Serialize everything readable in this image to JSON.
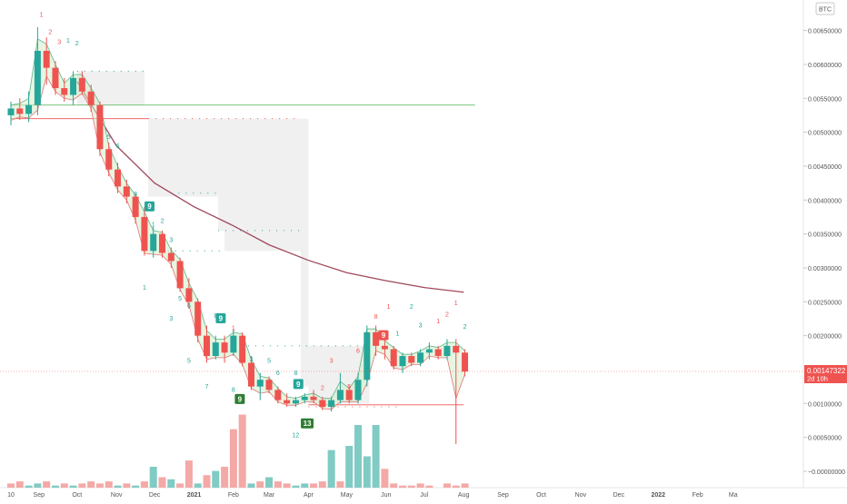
{
  "chart_data": {
    "type": "candlestick",
    "symbol_badge": "BTC",
    "y_ticks": [
      "0.00650000",
      "0.00600000",
      "0.00550000",
      "0.00500000",
      "0.00450000",
      "0.00400000",
      "0.00350000",
      "0.00300000",
      "0.00250000",
      "0.00200000",
      "0.00100000",
      "0.00050000",
      "−0.00000000"
    ],
    "y_tick_values": [
      0.0065,
      0.006,
      0.0055,
      0.005,
      0.0045,
      0.004,
      0.0035,
      0.003,
      0.0025,
      0.002,
      0.001,
      0.0005,
      0
    ],
    "ylim": [
      -9e-05,
      0.007
    ],
    "x_ticks": [
      "10",
      "Sep",
      "Oct",
      "Nov",
      "Dec",
      "2021",
      "Feb",
      "Mar",
      "Apr",
      "May",
      "Jun",
      "Jul",
      "Aug",
      "Sep",
      "Oct",
      "Nov",
      "Dec",
      "2022",
      "Feb",
      "Ma"
    ],
    "x_tick_dates": [
      "2020-08-10",
      "2020-09-01",
      "2020-10-01",
      "2020-11-01",
      "2020-12-01",
      "2021-01-01",
      "2021-02-01",
      "2021-03-01",
      "2021-04-01",
      "2021-05-01",
      "2021-06-01",
      "2021-07-01",
      "2021-08-01",
      "2021-09-01",
      "2021-10-01",
      "2021-11-01",
      "2021-12-01",
      "2022-01-01",
      "2022-02-01",
      "2022-03-01"
    ],
    "last_price": "0.00147322",
    "countdown": "2d 10h",
    "colors": {
      "up": "#26a69a",
      "down": "#ef5350",
      "ma": "#a0485a",
      "support": "#4caf50",
      "resistance": "#ef5350"
    },
    "candles": [
      {
        "date": "2020-08-10",
        "o": 0.00525,
        "h": 0.00545,
        "l": 0.0051,
        "c": 0.00535
      },
      {
        "date": "2020-08-17",
        "o": 0.00535,
        "h": 0.0055,
        "l": 0.00518,
        "c": 0.00527
      },
      {
        "date": "2020-08-24",
        "o": 0.00527,
        "h": 0.0056,
        "l": 0.00515,
        "c": 0.0054
      },
      {
        "date": "2020-08-31",
        "o": 0.0054,
        "h": 0.00655,
        "l": 0.00525,
        "c": 0.0062
      },
      {
        "date": "2020-09-07",
        "o": 0.0062,
        "h": 0.0064,
        "l": 0.0057,
        "c": 0.00595
      },
      {
        "date": "2020-09-14",
        "o": 0.00595,
        "h": 0.00605,
        "l": 0.00555,
        "c": 0.00565
      },
      {
        "date": "2020-09-21",
        "o": 0.00565,
        "h": 0.0058,
        "l": 0.00545,
        "c": 0.00555
      },
      {
        "date": "2020-09-28",
        "o": 0.00555,
        "h": 0.0059,
        "l": 0.0054,
        "c": 0.0058
      },
      {
        "date": "2020-10-05",
        "o": 0.0058,
        "h": 0.0059,
        "l": 0.00555,
        "c": 0.0056
      },
      {
        "date": "2020-10-12",
        "o": 0.0056,
        "h": 0.0057,
        "l": 0.0053,
        "c": 0.0054
      },
      {
        "date": "2020-10-19",
        "o": 0.0054,
        "h": 0.00545,
        "l": 0.00465,
        "c": 0.00475
      },
      {
        "date": "2020-10-26",
        "o": 0.00475,
        "h": 0.00485,
        "l": 0.00435,
        "c": 0.00445
      },
      {
        "date": "2020-11-02",
        "o": 0.00445,
        "h": 0.00455,
        "l": 0.0041,
        "c": 0.0042
      },
      {
        "date": "2020-11-09",
        "o": 0.0042,
        "h": 0.0043,
        "l": 0.00395,
        "c": 0.00405
      },
      {
        "date": "2020-11-16",
        "o": 0.00405,
        "h": 0.0041,
        "l": 0.00365,
        "c": 0.00375
      },
      {
        "date": "2020-11-23",
        "o": 0.00375,
        "h": 0.0039,
        "l": 0.00318,
        "c": 0.00325
      },
      {
        "date": "2020-11-30",
        "o": 0.00325,
        "h": 0.0036,
        "l": 0.00315,
        "c": 0.0035
      },
      {
        "date": "2020-12-07",
        "o": 0.0035,
        "h": 0.00355,
        "l": 0.00315,
        "c": 0.00322
      },
      {
        "date": "2020-12-14",
        "o": 0.00322,
        "h": 0.0033,
        "l": 0.003,
        "c": 0.0031
      },
      {
        "date": "2020-12-21",
        "o": 0.0031,
        "h": 0.00315,
        "l": 0.00265,
        "c": 0.0027
      },
      {
        "date": "2020-12-28",
        "o": 0.0027,
        "h": 0.00285,
        "l": 0.0024,
        "c": 0.0025
      },
      {
        "date": "2021-01-04",
        "o": 0.0025,
        "h": 0.00255,
        "l": 0.0019,
        "c": 0.002
      },
      {
        "date": "2021-01-11",
        "o": 0.002,
        "h": 0.00215,
        "l": 0.0016,
        "c": 0.0017
      },
      {
        "date": "2021-01-18",
        "o": 0.0017,
        "h": 0.002,
        "l": 0.00165,
        "c": 0.0019
      },
      {
        "date": "2021-01-25",
        "o": 0.0019,
        "h": 0.002,
        "l": 0.0016,
        "c": 0.00175
      },
      {
        "date": "2021-02-01",
        "o": 0.00175,
        "h": 0.0021,
        "l": 0.0017,
        "c": 0.002
      },
      {
        "date": "2021-02-08",
        "o": 0.002,
        "h": 0.00205,
        "l": 0.00155,
        "c": 0.0016
      },
      {
        "date": "2021-02-15",
        "o": 0.0016,
        "h": 0.0017,
        "l": 0.0012,
        "c": 0.00125
      },
      {
        "date": "2021-02-22",
        "o": 0.00125,
        "h": 0.00145,
        "l": 0.00105,
        "c": 0.00135
      },
      {
        "date": "2021-03-01",
        "o": 0.00135,
        "h": 0.0014,
        "l": 0.00115,
        "c": 0.0012
      },
      {
        "date": "2021-03-08",
        "o": 0.0012,
        "h": 0.00125,
        "l": 0.001,
        "c": 0.00105
      },
      {
        "date": "2021-03-15",
        "o": 0.00105,
        "h": 0.00115,
        "l": 0.00095,
        "c": 0.001
      },
      {
        "date": "2021-03-22",
        "o": 0.001,
        "h": 0.0011,
        "l": 0.00095,
        "c": 0.00105
      },
      {
        "date": "2021-03-29",
        "o": 0.00105,
        "h": 0.00115,
        "l": 0.001,
        "c": 0.0011
      },
      {
        "date": "2021-04-05",
        "o": 0.0011,
        "h": 0.0012,
        "l": 0.001,
        "c": 0.00105
      },
      {
        "date": "2021-04-12",
        "o": 0.00105,
        "h": 0.0011,
        "l": 0.0009,
        "c": 0.00095
      },
      {
        "date": "2021-04-19",
        "o": 0.00095,
        "h": 0.0011,
        "l": 0.00088,
        "c": 0.00105
      },
      {
        "date": "2021-04-26",
        "o": 0.00105,
        "h": 0.00145,
        "l": 0.001,
        "c": 0.0012
      },
      {
        "date": "2021-05-03",
        "o": 0.0012,
        "h": 0.00125,
        "l": 0.001,
        "c": 0.00105
      },
      {
        "date": "2021-05-10",
        "o": 0.00105,
        "h": 0.00145,
        "l": 0.001,
        "c": 0.00135
      },
      {
        "date": "2021-05-17",
        "o": 0.00135,
        "h": 0.00215,
        "l": 0.00125,
        "c": 0.00205
      },
      {
        "date": "2021-05-24",
        "o": 0.00205,
        "h": 0.00215,
        "l": 0.0017,
        "c": 0.00185
      },
      {
        "date": "2021-05-31",
        "o": 0.00185,
        "h": 0.002,
        "l": 0.00165,
        "c": 0.0018
      },
      {
        "date": "2021-06-07",
        "o": 0.0018,
        "h": 0.00185,
        "l": 0.0015,
        "c": 0.00155
      },
      {
        "date": "2021-06-14",
        "o": 0.00155,
        "h": 0.00175,
        "l": 0.00145,
        "c": 0.0017
      },
      {
        "date": "2021-06-21",
        "o": 0.0017,
        "h": 0.00175,
        "l": 0.00155,
        "c": 0.0016
      },
      {
        "date": "2021-06-28",
        "o": 0.0016,
        "h": 0.0018,
        "l": 0.00155,
        "c": 0.00175
      },
      {
        "date": "2021-07-05",
        "o": 0.00175,
        "h": 0.0019,
        "l": 0.00165,
        "c": 0.0018
      },
      {
        "date": "2021-07-12",
        "o": 0.0018,
        "h": 0.00185,
        "l": 0.00165,
        "c": 0.0017
      },
      {
        "date": "2021-07-19",
        "o": 0.0017,
        "h": 0.00195,
        "l": 0.00165,
        "c": 0.00185
      },
      {
        "date": "2021-07-26",
        "o": 0.00185,
        "h": 0.00195,
        "l": 0.0004,
        "c": 0.00175
      },
      {
        "date": "2021-08-02",
        "o": 0.00175,
        "h": 0.0018,
        "l": 0.0014,
        "c": 0.00147
      }
    ],
    "volume_up": [
      0,
      0,
      1,
      2,
      0,
      1,
      0,
      1,
      0,
      0,
      0,
      0,
      1,
      0,
      1,
      0,
      10,
      0,
      4,
      0,
      0,
      2,
      0,
      8,
      0,
      0,
      0,
      2,
      0,
      5,
      0,
      0,
      1,
      2,
      0,
      0,
      18,
      0,
      20,
      30,
      15,
      30,
      0,
      0,
      0,
      0,
      0,
      0,
      0,
      0,
      0,
      0
    ],
    "volume_down": [
      2,
      3,
      0,
      0,
      3,
      0,
      2,
      0,
      2,
      3,
      2,
      3,
      0,
      2,
      0,
      3,
      0,
      5,
      0,
      2,
      13,
      0,
      6,
      0,
      10,
      28,
      35,
      0,
      3,
      0,
      3,
      2,
      0,
      0,
      2,
      3,
      0,
      3,
      0,
      0,
      0,
      0,
      9,
      2,
      1,
      1,
      2,
      1,
      0,
      2,
      1,
      2
    ],
    "ma_line": [
      {
        "date": "2020-10-01",
        "v": 0.00575
      },
      {
        "date": "2020-11-01",
        "v": 0.0048
      },
      {
        "date": "2020-12-01",
        "v": 0.00425
      },
      {
        "date": "2021-01-01",
        "v": 0.0039
      },
      {
        "date": "2021-02-01",
        "v": 0.00362
      },
      {
        "date": "2021-03-01",
        "v": 0.00334
      },
      {
        "date": "2021-04-01",
        "v": 0.00311
      },
      {
        "date": "2021-05-01",
        "v": 0.00293
      },
      {
        "date": "2021-06-01",
        "v": 0.00281
      },
      {
        "date": "2021-07-01",
        "v": 0.00271
      },
      {
        "date": "2021-08-01",
        "v": 0.00264
      }
    ],
    "support_line": {
      "v": 0.0054,
      "from": "2020-08-10",
      "to": "2021-08-10"
    },
    "resistance_lines": [
      {
        "v": 0.0052,
        "from": "2020-08-10",
        "to": "2020-11-26"
      },
      {
        "v": 0.00098,
        "from": "2021-04-01",
        "to": "2021-08-01"
      }
    ],
    "seq_labels": [
      {
        "t": "1",
        "date": "2020-09-03",
        "v": 0.0067,
        "c": "#ef5350"
      },
      {
        "t": "2",
        "date": "2020-09-10",
        "v": 0.00645,
        "c": "#ef5350"
      },
      {
        "t": "3",
        "date": "2020-09-17",
        "v": 0.0063,
        "c": "#ef5350"
      },
      {
        "t": "1",
        "date": "2020-09-24",
        "v": 0.00632,
        "c": "#26a69a"
      },
      {
        "t": "2",
        "date": "2020-10-01",
        "v": 0.00628,
        "c": "#26a69a"
      },
      {
        "t": "5",
        "date": "2020-10-26",
        "v": 0.0049,
        "c": "#26a69a"
      },
      {
        "t": "6",
        "date": "2020-11-02",
        "v": 0.00477,
        "c": "#26a69a"
      },
      {
        "t": "8",
        "date": "2020-11-16",
        "v": 0.00406,
        "c": "#26a69a"
      },
      {
        "t": "1",
        "date": "2020-11-30",
        "v": 0.00361,
        "c": "#26a69a"
      },
      {
        "t": "2",
        "date": "2020-12-07",
        "v": 0.00366,
        "c": "#26a69a"
      },
      {
        "t": "3",
        "date": "2020-12-14",
        "v": 0.00338,
        "c": "#26a69a"
      },
      {
        "t": "1",
        "date": "2020-11-23",
        "v": 0.00268,
        "c": "#26a69a"
      },
      {
        "t": "5",
        "date": "2020-12-21",
        "v": 0.00252,
        "c": "#26a69a"
      },
      {
        "t": "6",
        "date": "2020-12-28",
        "v": 0.00241,
        "c": "#26a69a"
      },
      {
        "t": "3",
        "date": "2020-12-14",
        "v": 0.00222,
        "c": "#26a69a"
      },
      {
        "t": "8",
        "date": "2021-01-18",
        "v": 0.00226,
        "c": "#26a69a"
      },
      {
        "t": "5",
        "date": "2020-12-28",
        "v": 0.0016,
        "c": "#26a69a"
      },
      {
        "t": "7",
        "date": "2021-01-11",
        "v": 0.00122,
        "c": "#26a69a"
      },
      {
        "t": "1",
        "date": "2021-02-01",
        "v": 0.00208,
        "c": "#ef5350"
      },
      {
        "t": "3",
        "date": "2021-02-15",
        "v": 0.00162,
        "c": "#26a69a"
      },
      {
        "t": "5",
        "date": "2021-03-01",
        "v": 0.0016,
        "c": "#26a69a"
      },
      {
        "t": "6",
        "date": "2021-03-08",
        "v": 0.00142,
        "c": "#26a69a"
      },
      {
        "t": "8",
        "date": "2021-03-22",
        "v": 0.00142,
        "c": "#26a69a"
      },
      {
        "t": "8",
        "date": "2021-02-01",
        "v": 0.00117,
        "c": "#26a69a"
      },
      {
        "t": "12",
        "date": "2021-03-22",
        "v": 0.0005,
        "c": "#26a69a"
      },
      {
        "t": "2",
        "date": "2021-04-12",
        "v": 0.0012,
        "c": "#ef5350"
      },
      {
        "t": "3",
        "date": "2021-04-19",
        "v": 0.0016,
        "c": "#ef5350"
      },
      {
        "t": "5",
        "date": "2021-05-03",
        "v": 0.00122,
        "c": "#ef5350"
      },
      {
        "t": "6",
        "date": "2021-05-10",
        "v": 0.00175,
        "c": "#ef5350"
      },
      {
        "t": "8",
        "date": "2021-05-24",
        "v": 0.00225,
        "c": "#ef5350"
      },
      {
        "t": "1",
        "date": "2021-06-03",
        "v": 0.0024,
        "c": "#ef5350"
      },
      {
        "t": "2",
        "date": "2021-06-21",
        "v": 0.0024,
        "c": "#26a69a"
      },
      {
        "t": "1",
        "date": "2021-06-10",
        "v": 0.002,
        "c": "#26a69a"
      },
      {
        "t": "3",
        "date": "2021-06-28",
        "v": 0.00212,
        "c": "#26a69a"
      },
      {
        "t": "1",
        "date": "2021-07-12",
        "v": 0.00218,
        "c": "#ef5350"
      },
      {
        "t": "2",
        "date": "2021-07-19",
        "v": 0.00228,
        "c": "#ef5350"
      },
      {
        "t": "1",
        "date": "2021-07-26",
        "v": 0.00245,
        "c": "#ef5350"
      },
      {
        "t": "2",
        "date": "2021-08-02",
        "v": 0.0021,
        "c": "#26a69a"
      }
    ],
    "badges": [
      {
        "t": "9",
        "date": "2020-11-27",
        "v": 0.0039,
        "c": "#26a69a"
      },
      {
        "t": "9",
        "date": "2021-01-22",
        "v": 0.00225,
        "c": "#26a69a"
      },
      {
        "t": "9",
        "date": "2021-02-06",
        "v": 0.00106,
        "c": "#2e7d32"
      },
      {
        "t": "9",
        "date": "2021-03-24",
        "v": 0.00128,
        "c": "#26a69a"
      },
      {
        "t": "13",
        "date": "2021-03-31",
        "v": 0.0007,
        "c": "#2e7d32"
      },
      {
        "t": "9",
        "date": "2021-05-30",
        "v": 0.002,
        "c": "#ef5350"
      }
    ]
  }
}
